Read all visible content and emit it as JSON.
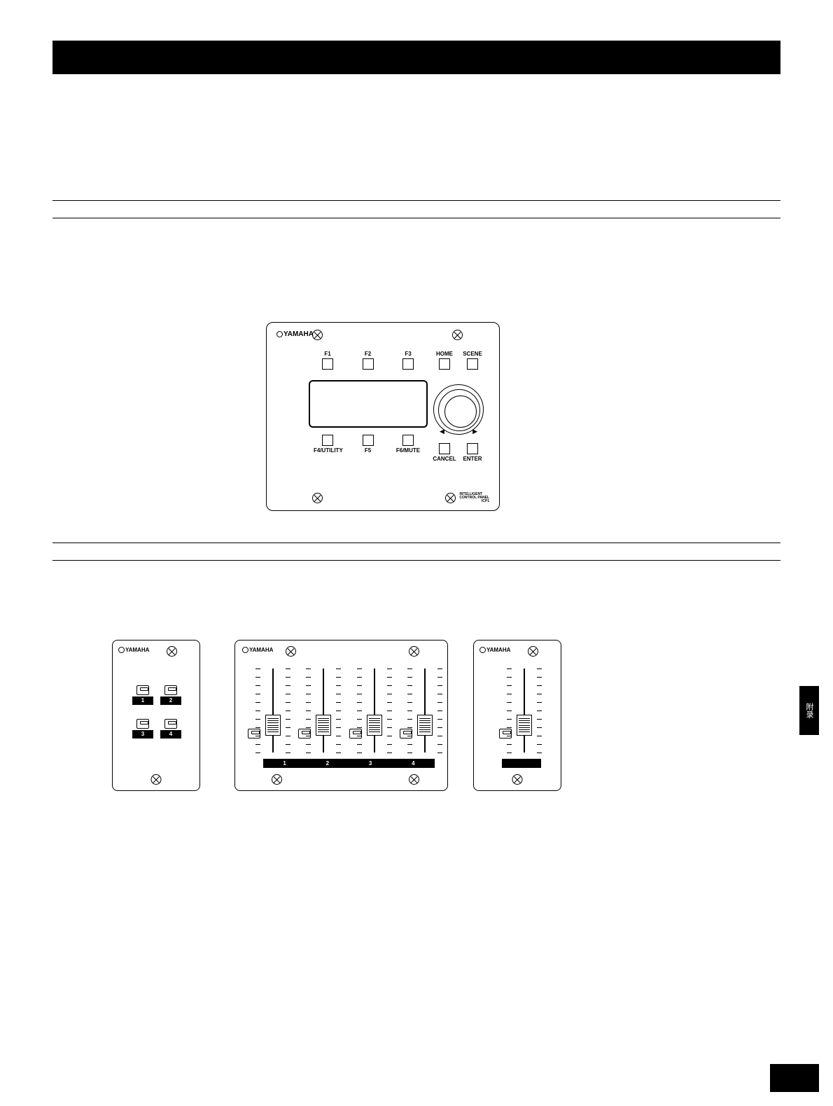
{
  "colors": {
    "background": "#ffffff",
    "foreground": "#000000"
  },
  "side_tab": "附录",
  "icp1": {
    "logo": "YAMAHA",
    "top_keys": [
      {
        "label": "F1"
      },
      {
        "label": "F2"
      },
      {
        "label": "F3"
      }
    ],
    "bottom_keys": [
      {
        "label": "F4/UTILITY"
      },
      {
        "label": "F5"
      },
      {
        "label": "F6/MUTE"
      }
    ],
    "right_top_keys": [
      {
        "label": "HOME"
      },
      {
        "label": "SCENE"
      }
    ],
    "right_bottom_keys": [
      {
        "label": "CANCEL"
      },
      {
        "label": "ENTER"
      }
    ],
    "branding_line1": "INTELLIGENT",
    "branding_line2": "CONTROL PANEL",
    "branding_line3": "ICP1"
  },
  "cp4sw": {
    "logo": "YAMAHA",
    "switches": [
      {
        "label": "1"
      },
      {
        "label": "2"
      },
      {
        "label": "3"
      },
      {
        "label": "4"
      }
    ]
  },
  "cp4sf": {
    "logo": "YAMAHA",
    "faders": [
      {
        "label": "1",
        "knob_pos_pct": 55
      },
      {
        "label": "2",
        "knob_pos_pct": 55
      },
      {
        "label": "3",
        "knob_pos_pct": 55
      },
      {
        "label": "4",
        "knob_pos_pct": 55
      }
    ],
    "tick_count": 11
  },
  "cp1sf": {
    "logo": "YAMAHA",
    "fader": {
      "knob_pos_pct": 55
    },
    "tick_count": 11
  }
}
